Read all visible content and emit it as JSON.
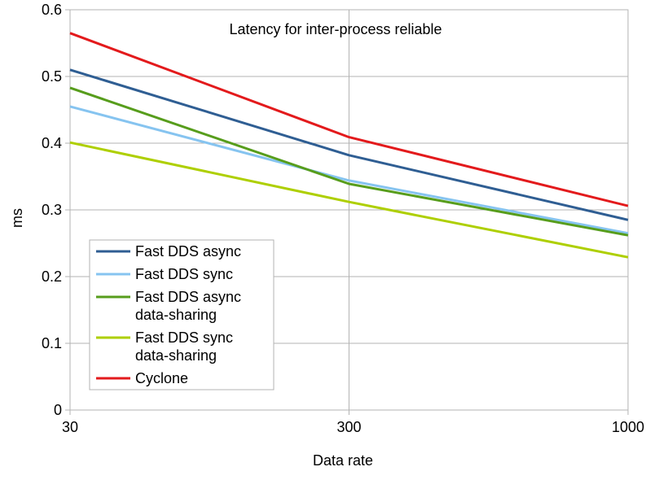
{
  "chart_data": {
    "type": "line",
    "title": "Latency for inter-process reliable",
    "xlabel": "Data rate",
    "ylabel": "ms",
    "categories": [
      "30",
      "300",
      "1000"
    ],
    "ylim": [
      0,
      0.6
    ],
    "yticks": [
      "0",
      "0.1",
      "0.2",
      "0.3",
      "0.4",
      "0.5",
      "0.6"
    ],
    "grid": true,
    "legend_position": "bottom-left",
    "series": [
      {
        "name": "Fast DDS async",
        "label_lines": [
          "Fast DDS async"
        ],
        "color": "#2f5e93",
        "values": [
          0.51,
          0.382,
          0.285
        ]
      },
      {
        "name": "Fast DDS sync",
        "label_lines": [
          "Fast DDS sync"
        ],
        "color": "#86c4f0",
        "values": [
          0.455,
          0.344,
          0.265
        ]
      },
      {
        "name": "Fast DDS async data-sharing",
        "label_lines": [
          "Fast DDS async",
          "data-sharing"
        ],
        "color": "#579d1c",
        "values": [
          0.483,
          0.339,
          0.262
        ]
      },
      {
        "name": "Fast DDS sync data-sharing",
        "label_lines": [
          "Fast DDS sync",
          "data-sharing"
        ],
        "color": "#aecf00",
        "values": [
          0.401,
          0.312,
          0.229
        ]
      },
      {
        "name": "Cyclone",
        "label_lines": [
          "Cyclone"
        ],
        "color": "#e31a1c",
        "values": [
          0.565,
          0.409,
          0.306
        ]
      }
    ]
  }
}
